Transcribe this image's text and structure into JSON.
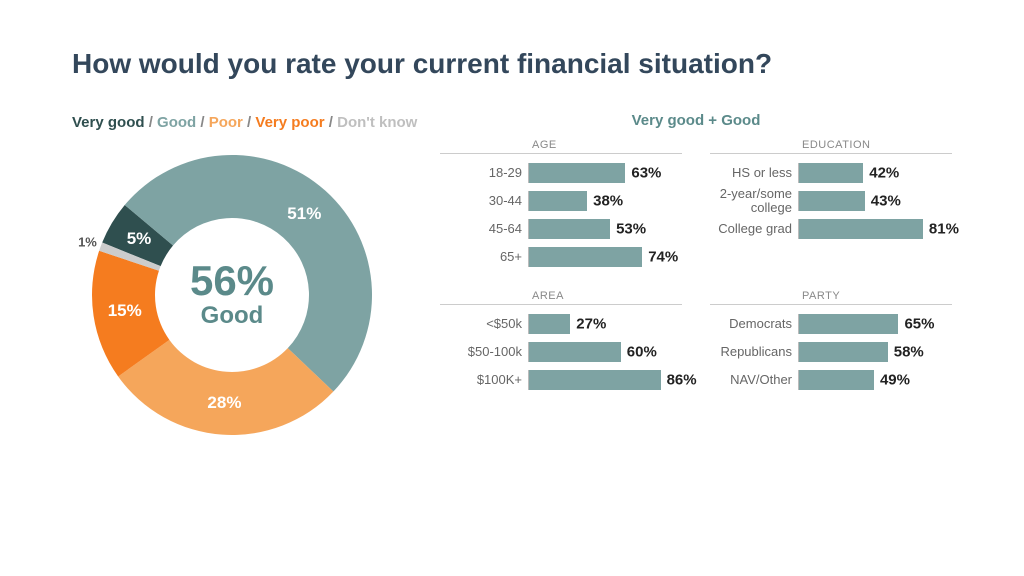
{
  "title": "How would you rate your current financial situation?",
  "title_color": "#33475b",
  "title_fontsize": 28,
  "background_color": "#ffffff",
  "donut": {
    "type": "pie",
    "center_pct": "56%",
    "center_label": "Good",
    "center_color": "#5b8a8a",
    "inner_radius_ratio": 0.55,
    "legend_separator": " / ",
    "slices": [
      {
        "name": "Very good",
        "value": 5,
        "label": "5%",
        "color": "#2f4f4f",
        "legend_color": "#2f4f4f"
      },
      {
        "name": "Good",
        "value": 51,
        "label": "51%",
        "color": "#7ea3a3",
        "legend_color": "#7ea3a3"
      },
      {
        "name": "Poor",
        "value": 28,
        "label": "28%",
        "color": "#f5a65b",
        "legend_color": "#f5a65b"
      },
      {
        "name": "Very poor",
        "value": 15,
        "label": "15%",
        "color": "#f57c1f",
        "legend_color": "#f57c1f"
      },
      {
        "name": "Don't know",
        "value": 1,
        "label": "1%",
        "color": "#cccccc",
        "legend_color": "#bfbfbf"
      }
    ],
    "start_slice": "Very good",
    "start_angle_deg": 202
  },
  "bars": {
    "type": "bar",
    "title": "Very good + Good",
    "bar_color": "#7ea3a3",
    "max_value": 100,
    "value_fontsize": 15,
    "category_fontsize": 13,
    "group_title_fontsize": 11,
    "groups": [
      {
        "title": "AGE",
        "rows": [
          {
            "cat": "18-29",
            "value": 63,
            "label": "63%"
          },
          {
            "cat": "30-44",
            "value": 38,
            "label": "38%"
          },
          {
            "cat": "45-64",
            "value": 53,
            "label": "53%"
          },
          {
            "cat": "65+",
            "value": 74,
            "label": "74%"
          }
        ]
      },
      {
        "title": "EDUCATION",
        "rows": [
          {
            "cat": "HS or less",
            "value": 42,
            "label": "42%"
          },
          {
            "cat": "2-year/some college",
            "value": 43,
            "label": "43%"
          },
          {
            "cat": "College grad",
            "value": 81,
            "label": "81%"
          }
        ]
      },
      {
        "title": "AREA",
        "rows": [
          {
            "cat": "<$50k",
            "value": 27,
            "label": "27%"
          },
          {
            "cat": "$50-100k",
            "value": 60,
            "label": "60%"
          },
          {
            "cat": "$100K+",
            "value": 86,
            "label": "86%"
          }
        ]
      },
      {
        "title": "PARTY",
        "rows": [
          {
            "cat": "Democrats",
            "value": 65,
            "label": "65%"
          },
          {
            "cat": "Republicans",
            "value": 58,
            "label": "58%"
          },
          {
            "cat": "NAV/Other",
            "value": 49,
            "label": "49%"
          }
        ]
      }
    ]
  }
}
